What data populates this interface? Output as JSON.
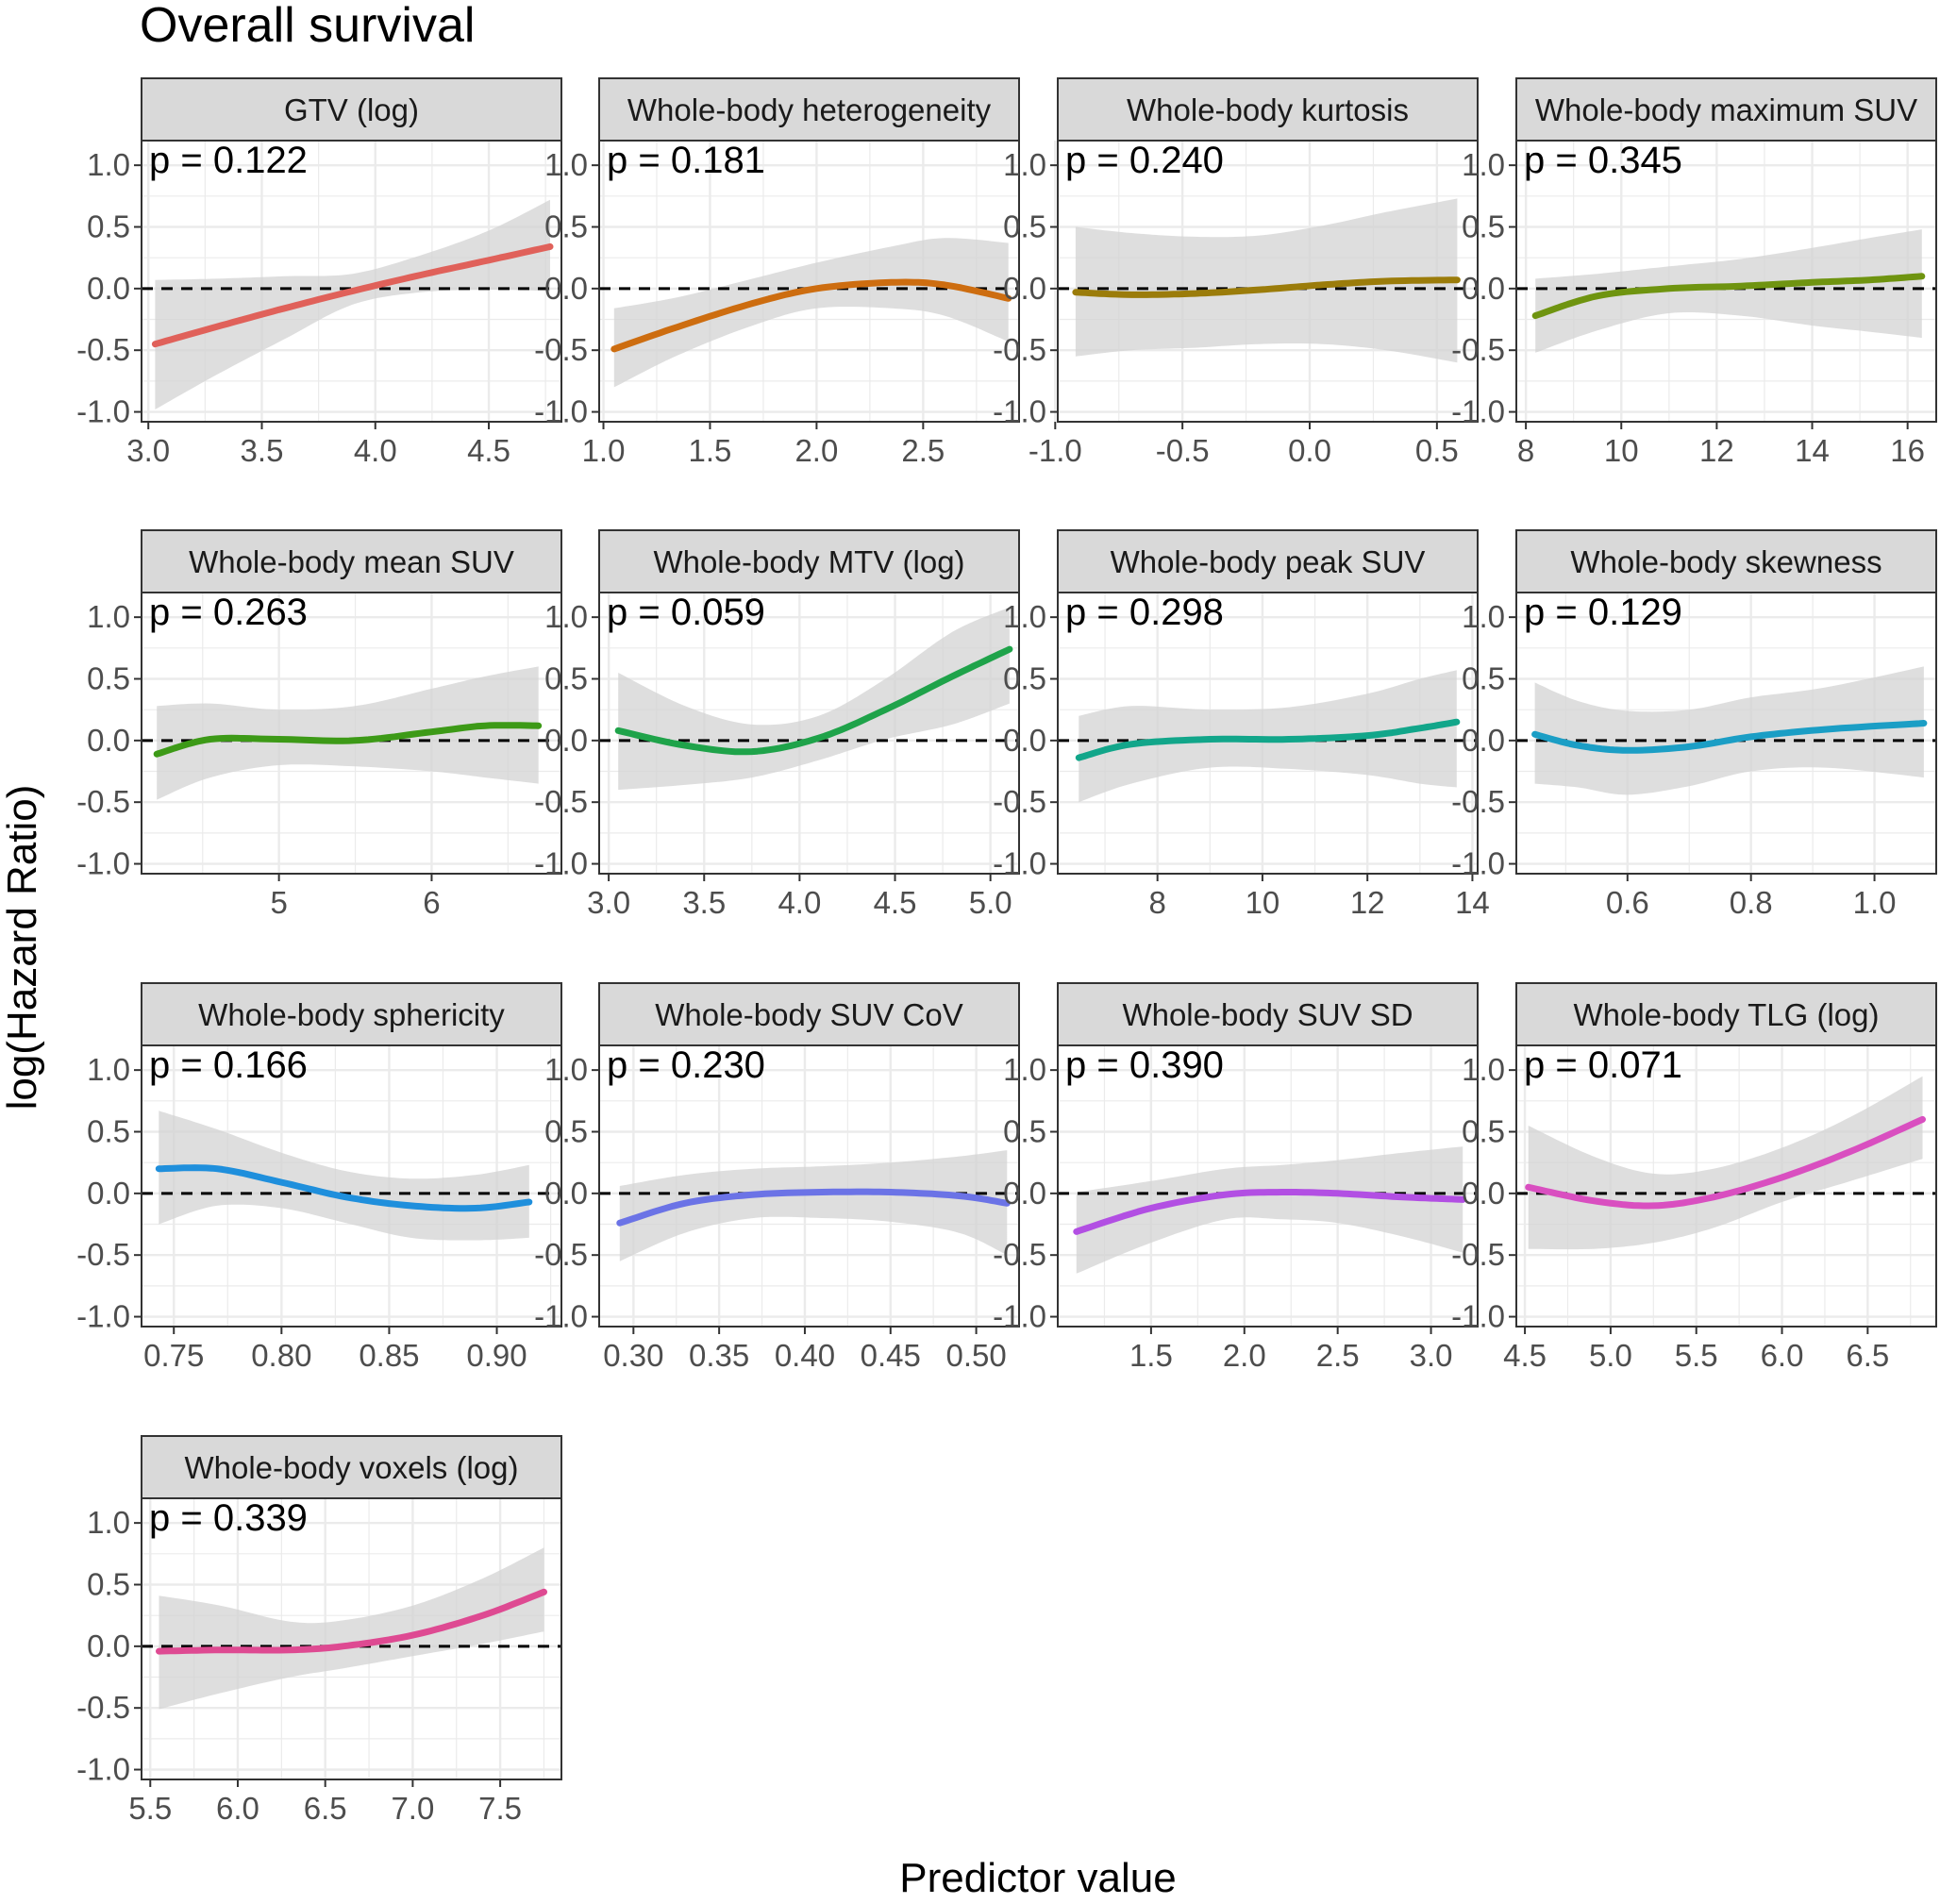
{
  "figure": {
    "title": "Overall survival",
    "xlabel": "Predictor value",
    "ylabel": "log(Hazard Ratio)"
  },
  "colors": {
    "panel_background": "#ffffff",
    "panel_border": "#333333",
    "strip_fill": "#d9d9d9",
    "grid": "#ebebeb",
    "ribbon": "#d3d3d3",
    "reference_line": "#000000"
  },
  "chart_data": [
    {
      "type": "line",
      "panel": "GTV (log)",
      "p_label": "p = 0.122",
      "color": "#e0615a",
      "xlim": [
        2.97,
        4.82
      ],
      "xticks": [
        3.0,
        3.5,
        4.0,
        4.5
      ],
      "xtick_labels": [
        "3.0",
        "3.5",
        "4.0",
        "4.5"
      ],
      "ylim": [
        -1.08,
        1.2
      ],
      "yticks": [
        -1.0,
        -0.5,
        0.0,
        0.5,
        1.0
      ],
      "ytick_labels": [
        "-1.0",
        "-0.5",
        "0.0",
        "0.5",
        "1.0"
      ],
      "x": [
        3.03,
        3.3,
        3.6,
        3.9,
        4.2,
        4.5,
        4.77
      ],
      "y": [
        -0.45,
        -0.31,
        -0.16,
        -0.02,
        0.11,
        0.23,
        0.34
      ],
      "lower": [
        -0.98,
        -0.7,
        -0.41,
        -0.13,
        -0.03,
        -0.01,
        -0.02
      ],
      "upper": [
        0.07,
        0.08,
        0.1,
        0.12,
        0.27,
        0.47,
        0.72
      ],
      "reference_y": 0
    },
    {
      "type": "line",
      "panel": "Whole-body heterogeneity",
      "p_label": "p = 0.181",
      "color": "#cd6d10",
      "xlim": [
        0.98,
        2.95
      ],
      "xticks": [
        1.0,
        1.5,
        2.0,
        2.5
      ],
      "xtick_labels": [
        "1.0",
        "1.5",
        "2.0",
        "2.5"
      ],
      "ylim": [
        -1.08,
        1.2
      ],
      "yticks": [
        -1.0,
        -0.5,
        0.0,
        0.5,
        1.0
      ],
      "ytick_labels": [
        "-1.0",
        "-0.5",
        "0.0",
        "0.5",
        "1.0"
      ],
      "x": [
        1.05,
        1.35,
        1.7,
        2.0,
        2.35,
        2.6,
        2.9
      ],
      "y": [
        -0.49,
        -0.31,
        -0.12,
        0.0,
        0.05,
        0.03,
        -0.08
      ],
      "lower": [
        -0.8,
        -0.54,
        -0.3,
        -0.16,
        -0.16,
        -0.22,
        -0.43
      ],
      "upper": [
        -0.16,
        -0.07,
        0.08,
        0.21,
        0.34,
        0.41,
        0.37
      ],
      "reference_y": 0
    },
    {
      "type": "line",
      "panel": "Whole-body kurtosis",
      "p_label": "p = 0.240",
      "color": "#9b7c0a",
      "xlim": [
        -0.99,
        0.66
      ],
      "xticks": [
        -1.0,
        -0.5,
        0.0,
        0.5
      ],
      "xtick_labels": [
        "-1.0",
        "-0.5",
        "0.0",
        "0.5"
      ],
      "ylim": [
        -1.08,
        1.2
      ],
      "yticks": [
        -1.0,
        -0.5,
        0.0,
        0.5,
        1.0
      ],
      "ytick_labels": [
        "-1.0",
        "-0.5",
        "0.0",
        "0.5",
        "1.0"
      ],
      "x": [
        -0.92,
        -0.7,
        -0.45,
        -0.2,
        0.05,
        0.3,
        0.58
      ],
      "y": [
        -0.03,
        -0.05,
        -0.04,
        -0.01,
        0.03,
        0.06,
        0.07
      ],
      "lower": [
        -0.55,
        -0.5,
        -0.48,
        -0.45,
        -0.45,
        -0.5,
        -0.6
      ],
      "upper": [
        0.5,
        0.45,
        0.42,
        0.43,
        0.51,
        0.62,
        0.73
      ],
      "reference_y": 0
    },
    {
      "type": "line",
      "panel": "Whole-body maximum SUV",
      "p_label": "p = 0.345",
      "color": "#6f9410",
      "xlim": [
        7.8,
        16.6
      ],
      "xticks": [
        8,
        10,
        12,
        14,
        16
      ],
      "xtick_labels": [
        "8",
        "10",
        "12",
        "14",
        "16"
      ],
      "ylim": [
        -1.08,
        1.2
      ],
      "yticks": [
        -1.0,
        -0.5,
        0.0,
        0.5,
        1.0
      ],
      "ytick_labels": [
        "-1.0",
        "-0.5",
        "0.0",
        "0.5",
        "1.0"
      ],
      "x": [
        8.2,
        9.5,
        11,
        12.5,
        14,
        15.2,
        16.3
      ],
      "y": [
        -0.22,
        -0.06,
        0.0,
        0.02,
        0.05,
        0.07,
        0.1
      ],
      "lower": [
        -0.52,
        -0.34,
        -0.2,
        -0.22,
        -0.3,
        -0.35,
        -0.4
      ],
      "upper": [
        0.08,
        0.12,
        0.18,
        0.24,
        0.33,
        0.41,
        0.48
      ],
      "reference_y": 0
    },
    {
      "type": "line",
      "panel": "Whole-body mean SUV",
      "p_label": "p = 0.263",
      "color": "#3d9a17",
      "xlim": [
        4.1,
        6.85
      ],
      "xticks": [
        5,
        6
      ],
      "xtick_labels": [
        "5",
        "6"
      ],
      "ylim": [
        -1.08,
        1.2
      ],
      "yticks": [
        -1.0,
        -0.5,
        0.0,
        0.5,
        1.0
      ],
      "ytick_labels": [
        "-1.0",
        "-0.5",
        "0.0",
        "0.5",
        "1.0"
      ],
      "x": [
        4.2,
        4.55,
        5.0,
        5.5,
        6.0,
        6.35,
        6.7
      ],
      "y": [
        -0.11,
        0.01,
        0.01,
        0.0,
        0.07,
        0.12,
        0.12
      ],
      "lower": [
        -0.48,
        -0.3,
        -0.2,
        -0.21,
        -0.25,
        -0.3,
        -0.35
      ],
      "upper": [
        0.28,
        0.3,
        0.25,
        0.28,
        0.42,
        0.52,
        0.6
      ],
      "reference_y": 0
    },
    {
      "type": "line",
      "panel": "Whole-body MTV (log)",
      "p_label": "p = 0.059",
      "color": "#1fa34a",
      "xlim": [
        2.95,
        5.15
      ],
      "xticks": [
        3.0,
        3.5,
        4.0,
        4.5,
        5.0
      ],
      "xtick_labels": [
        "3.0",
        "3.5",
        "4.0",
        "4.5",
        "5.0"
      ],
      "ylim": [
        -1.08,
        1.2
      ],
      "yticks": [
        -1.0,
        -0.5,
        0.0,
        0.5,
        1.0
      ],
      "ytick_labels": [
        "-1.0",
        "-0.5",
        "0.0",
        "0.5",
        "1.0"
      ],
      "x": [
        3.05,
        3.4,
        3.75,
        4.1,
        4.45,
        4.8,
        5.1
      ],
      "y": [
        0.08,
        -0.04,
        -0.09,
        0.02,
        0.25,
        0.52,
        0.74
      ],
      "lower": [
        -0.4,
        -0.36,
        -0.3,
        -0.16,
        0.01,
        0.13,
        0.3
      ],
      "upper": [
        0.55,
        0.28,
        0.13,
        0.2,
        0.5,
        0.88,
        1.08
      ],
      "reference_y": 0
    },
    {
      "type": "line",
      "panel": "Whole-body peak SUV",
      "p_label": "p = 0.298",
      "color": "#12a68a",
      "xlim": [
        6.1,
        14.1
      ],
      "xticks": [
        8,
        10,
        12,
        14
      ],
      "xtick_labels": [
        "8",
        "10",
        "12",
        "14"
      ],
      "ylim": [
        -1.08,
        1.2
      ],
      "yticks": [
        -1.0,
        -0.5,
        0.0,
        0.5,
        1.0
      ],
      "ytick_labels": [
        "-1.0",
        "-0.5",
        "0.0",
        "0.5",
        "1.0"
      ],
      "x": [
        6.5,
        7.5,
        9,
        10.5,
        12,
        13,
        13.7
      ],
      "y": [
        -0.14,
        -0.03,
        0.01,
        0.01,
        0.04,
        0.1,
        0.15
      ],
      "lower": [
        -0.5,
        -0.35,
        -0.22,
        -0.23,
        -0.28,
        -0.35,
        -0.38
      ],
      "upper": [
        0.2,
        0.28,
        0.25,
        0.27,
        0.38,
        0.5,
        0.57
      ],
      "reference_y": 0
    },
    {
      "type": "line",
      "panel": "Whole-body skewness",
      "p_label": "p = 0.129",
      "color": "#1b9ec5",
      "xlim": [
        0.42,
        1.1
      ],
      "xticks": [
        0.6,
        0.8,
        1.0
      ],
      "xtick_labels": [
        "0.6",
        "0.8",
        "1.0"
      ],
      "ylim": [
        -1.08,
        1.2
      ],
      "yticks": [
        -1.0,
        -0.5,
        0.0,
        0.5,
        1.0
      ],
      "ytick_labels": [
        "-1.0",
        "-0.5",
        "0.0",
        "0.5",
        "1.0"
      ],
      "x": [
        0.45,
        0.52,
        0.6,
        0.7,
        0.8,
        0.92,
        1.08
      ],
      "y": [
        0.05,
        -0.04,
        -0.08,
        -0.05,
        0.03,
        0.09,
        0.14
      ],
      "lower": [
        -0.35,
        -0.38,
        -0.44,
        -0.37,
        -0.25,
        -0.22,
        -0.3
      ],
      "upper": [
        0.47,
        0.32,
        0.24,
        0.25,
        0.35,
        0.43,
        0.6
      ],
      "reference_y": 0
    },
    {
      "type": "line",
      "panel": "Whole-body sphericity",
      "p_label": "p = 0.166",
      "color": "#1f8fdc",
      "xlim": [
        0.735,
        0.93
      ],
      "xticks": [
        0.75,
        0.8,
        0.85,
        0.9
      ],
      "xtick_labels": [
        "0.75",
        "0.80",
        "0.85",
        "0.90"
      ],
      "ylim": [
        -1.08,
        1.2
      ],
      "yticks": [
        -1.0,
        -0.5,
        0.0,
        0.5,
        1.0
      ],
      "ytick_labels": [
        "-1.0",
        "-0.5",
        "0.0",
        "0.5",
        "1.0"
      ],
      "x": [
        0.743,
        0.77,
        0.8,
        0.83,
        0.86,
        0.89,
        0.915
      ],
      "y": [
        0.2,
        0.2,
        0.09,
        -0.03,
        -0.1,
        -0.12,
        -0.07
      ],
      "lower": [
        -0.25,
        -0.1,
        -0.12,
        -0.24,
        -0.36,
        -0.38,
        -0.36
      ],
      "upper": [
        0.67,
        0.52,
        0.33,
        0.18,
        0.12,
        0.15,
        0.23
      ],
      "reference_y": 0
    },
    {
      "type": "line",
      "panel": "Whole-body SUV CoV",
      "p_label": "p = 0.230",
      "color": "#6b73e6",
      "xlim": [
        0.28,
        0.525
      ],
      "xticks": [
        0.3,
        0.35,
        0.4,
        0.45,
        0.5
      ],
      "xtick_labels": [
        "0.30",
        "0.35",
        "0.40",
        "0.45",
        "0.50"
      ],
      "ylim": [
        -1.08,
        1.2
      ],
      "yticks": [
        -1.0,
        -0.5,
        0.0,
        0.5,
        1.0
      ],
      "ytick_labels": [
        "-1.0",
        "-0.5",
        "0.0",
        "0.5",
        "1.0"
      ],
      "x": [
        0.292,
        0.33,
        0.37,
        0.41,
        0.45,
        0.49,
        0.518
      ],
      "y": [
        -0.24,
        -0.08,
        -0.01,
        0.01,
        0.01,
        -0.02,
        -0.08
      ],
      "lower": [
        -0.55,
        -0.32,
        -0.2,
        -0.2,
        -0.23,
        -0.32,
        -0.5
      ],
      "upper": [
        0.06,
        0.15,
        0.2,
        0.22,
        0.25,
        0.3,
        0.35
      ],
      "reference_y": 0
    },
    {
      "type": "line",
      "panel": "Whole-body SUV SD",
      "p_label": "p = 0.390",
      "color": "#b24fe3",
      "xlim": [
        1.0,
        3.25
      ],
      "xticks": [
        1.5,
        2.0,
        2.5,
        3.0
      ],
      "xtick_labels": [
        "1.5",
        "2.0",
        "2.5",
        "3.0"
      ],
      "ylim": [
        -1.08,
        1.2
      ],
      "yticks": [
        -1.0,
        -0.5,
        0.0,
        0.5,
        1.0
      ],
      "ytick_labels": [
        "-1.0",
        "-0.5",
        "0.0",
        "0.5",
        "1.0"
      ],
      "x": [
        1.1,
        1.5,
        1.9,
        2.2,
        2.5,
        2.85,
        3.17
      ],
      "y": [
        -0.31,
        -0.12,
        -0.01,
        0.01,
        0.0,
        -0.03,
        -0.05
      ],
      "lower": [
        -0.65,
        -0.4,
        -0.21,
        -0.21,
        -0.24,
        -0.35,
        -0.48
      ],
      "upper": [
        0.01,
        0.1,
        0.2,
        0.23,
        0.27,
        0.33,
        0.38
      ],
      "reference_y": 0
    },
    {
      "type": "line",
      "panel": "Whole-body TLG (log)",
      "p_label": "p = 0.071",
      "color": "#d94fc0",
      "xlim": [
        4.45,
        6.9
      ],
      "xticks": [
        4.5,
        5.0,
        5.5,
        6.0,
        6.5
      ],
      "xtick_labels": [
        "4.5",
        "5.0",
        "5.5",
        "6.0",
        "6.5"
      ],
      "ylim": [
        -1.08,
        1.2
      ],
      "yticks": [
        -1.0,
        -0.5,
        0.0,
        0.5,
        1.0
      ],
      "ytick_labels": [
        "-1.0",
        "-0.5",
        "0.0",
        "0.5",
        "1.0"
      ],
      "x": [
        4.52,
        4.9,
        5.25,
        5.6,
        6.0,
        6.4,
        6.82
      ],
      "y": [
        0.05,
        -0.06,
        -0.1,
        -0.03,
        0.13,
        0.34,
        0.6
      ],
      "lower": [
        -0.45,
        -0.45,
        -0.4,
        -0.28,
        -0.07,
        0.1,
        0.28
      ],
      "upper": [
        0.55,
        0.3,
        0.16,
        0.2,
        0.37,
        0.62,
        0.95
      ],
      "reference_y": 0
    },
    {
      "type": "line",
      "panel": "Whole-body voxels (log)",
      "p_label": "p = 0.339",
      "color": "#de4a92",
      "xlim": [
        5.45,
        7.85
      ],
      "xticks": [
        5.5,
        6.0,
        6.5,
        7.0,
        7.5
      ],
      "xtick_labels": [
        "5.5",
        "6.0",
        "6.5",
        "7.0",
        "7.5"
      ],
      "ylim": [
        -1.08,
        1.2
      ],
      "yticks": [
        -1.0,
        -0.5,
        0.0,
        0.5,
        1.0
      ],
      "ytick_labels": [
        "-1.0",
        "-0.5",
        "0.0",
        "0.5",
        "1.0"
      ],
      "x": [
        5.55,
        5.9,
        6.3,
        6.6,
        7.0,
        7.4,
        7.75
      ],
      "y": [
        -0.04,
        -0.03,
        -0.03,
        0.0,
        0.09,
        0.25,
        0.44
      ],
      "lower": [
        -0.51,
        -0.38,
        -0.25,
        -0.18,
        -0.08,
        0.02,
        0.12
      ],
      "upper": [
        0.41,
        0.33,
        0.2,
        0.21,
        0.33,
        0.55,
        0.8
      ],
      "reference_y": 0
    }
  ]
}
